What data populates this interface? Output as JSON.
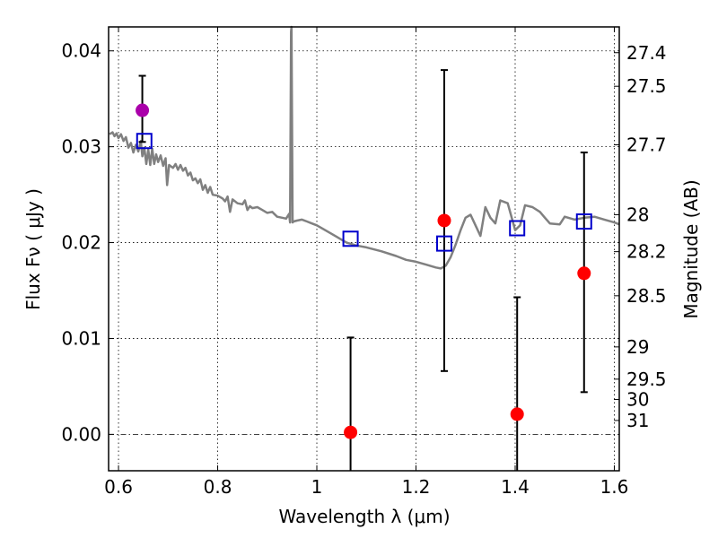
{
  "chart_data": {
    "type": "scatter",
    "xlabel": "Wavelength  λ (μm)",
    "ylabel": "Flux  Fν  ( μJy )",
    "ylabel_right": "Magnitude (AB)",
    "xlim": [
      0.58,
      1.61
    ],
    "ylim": [
      -0.0038,
      0.0425
    ],
    "grid": true,
    "x_ticks": [
      0.6,
      0.8,
      1.0,
      1.2,
      1.4,
      1.6
    ],
    "x_tick_labels": [
      "0.6",
      "0.8",
      "1",
      "1.2",
      "1.4",
      "1.6"
    ],
    "y_ticks": [
      0.0,
      0.01,
      0.02,
      0.03,
      0.04
    ],
    "y_tick_labels": [
      "0.00",
      "0.01",
      "0.02",
      "0.03",
      "0.04"
    ],
    "mag_ticks": [
      27.4,
      27.5,
      27.7,
      28,
      28.2,
      28.5,
      29,
      29.5,
      30,
      31
    ],
    "mag_tick_labels": [
      "27.4",
      "27.5",
      "27.7",
      "28",
      "28.2",
      "28.5",
      "29",
      "29.5",
      "30",
      "31"
    ],
    "model_spectrum": {
      "color": "#808080",
      "points": [
        [
          0.582,
          0.0313
        ],
        [
          0.588,
          0.0315
        ],
        [
          0.592,
          0.0311
        ],
        [
          0.596,
          0.0314
        ],
        [
          0.6,
          0.0309
        ],
        [
          0.605,
          0.0313
        ],
        [
          0.61,
          0.0306
        ],
        [
          0.615,
          0.031
        ],
        [
          0.62,
          0.0299
        ],
        [
          0.625,
          0.0304
        ],
        [
          0.63,
          0.0294
        ],
        [
          0.635,
          0.0302
        ],
        [
          0.64,
          0.0295
        ],
        [
          0.645,
          0.0306
        ],
        [
          0.648,
          0.029
        ],
        [
          0.652,
          0.0299
        ],
        [
          0.656,
          0.0282
        ],
        [
          0.66,
          0.0297
        ],
        [
          0.664,
          0.0281
        ],
        [
          0.668,
          0.0298
        ],
        [
          0.672,
          0.0282
        ],
        [
          0.676,
          0.0292
        ],
        [
          0.68,
          0.0284
        ],
        [
          0.685,
          0.0291
        ],
        [
          0.69,
          0.028
        ],
        [
          0.695,
          0.0288
        ],
        [
          0.698,
          0.026
        ],
        [
          0.702,
          0.0281
        ],
        [
          0.71,
          0.0278
        ],
        [
          0.715,
          0.0282
        ],
        [
          0.72,
          0.0276
        ],
        [
          0.725,
          0.0281
        ],
        [
          0.73,
          0.0275
        ],
        [
          0.735,
          0.0278
        ],
        [
          0.74,
          0.027
        ],
        [
          0.745,
          0.0273
        ],
        [
          0.75,
          0.0265
        ],
        [
          0.755,
          0.0267
        ],
        [
          0.76,
          0.0262
        ],
        [
          0.765,
          0.0266
        ],
        [
          0.77,
          0.0255
        ],
        [
          0.775,
          0.026
        ],
        [
          0.78,
          0.0252
        ],
        [
          0.785,
          0.0258
        ],
        [
          0.79,
          0.025
        ],
        [
          0.8,
          0.0249
        ],
        [
          0.81,
          0.0246
        ],
        [
          0.815,
          0.0243
        ],
        [
          0.82,
          0.0248
        ],
        [
          0.825,
          0.0232
        ],
        [
          0.83,
          0.0245
        ],
        [
          0.84,
          0.0241
        ],
        [
          0.85,
          0.024
        ],
        [
          0.855,
          0.0244
        ],
        [
          0.86,
          0.0234
        ],
        [
          0.865,
          0.0238
        ],
        [
          0.87,
          0.0236
        ],
        [
          0.88,
          0.0237
        ],
        [
          0.89,
          0.0234
        ],
        [
          0.9,
          0.0231
        ],
        [
          0.91,
          0.0232
        ],
        [
          0.92,
          0.0227
        ],
        [
          0.93,
          0.0226
        ],
        [
          0.938,
          0.0225
        ],
        [
          0.944,
          0.023
        ],
        [
          0.946,
          0.0221
        ],
        [
          0.948,
          0.042
        ],
        [
          0.949,
          0.043
        ],
        [
          0.951,
          0.0221
        ],
        [
          0.953,
          0.0222
        ],
        [
          0.96,
          0.0223
        ],
        [
          0.97,
          0.0224
        ],
        [
          0.98,
          0.0222
        ],
        [
          0.99,
          0.022
        ],
        [
          1.0,
          0.0218
        ],
        [
          1.02,
          0.0212
        ],
        [
          1.04,
          0.0206
        ],
        [
          1.06,
          0.02
        ],
        [
          1.08,
          0.0197
        ],
        [
          1.1,
          0.0195
        ],
        [
          1.13,
          0.0191
        ],
        [
          1.16,
          0.0186
        ],
        [
          1.18,
          0.0182
        ],
        [
          1.2,
          0.018
        ],
        [
          1.22,
          0.0177
        ],
        [
          1.24,
          0.0174
        ],
        [
          1.25,
          0.0173
        ],
        [
          1.26,
          0.0176
        ],
        [
          1.27,
          0.0185
        ],
        [
          1.28,
          0.0198
        ],
        [
          1.29,
          0.0213
        ],
        [
          1.3,
          0.0226
        ],
        [
          1.31,
          0.0229
        ],
        [
          1.32,
          0.0218
        ],
        [
          1.33,
          0.0207
        ],
        [
          1.34,
          0.0237
        ],
        [
          1.35,
          0.0226
        ],
        [
          1.36,
          0.022
        ],
        [
          1.37,
          0.0244
        ],
        [
          1.385,
          0.0241
        ],
        [
          1.4,
          0.0213
        ],
        [
          1.41,
          0.0218
        ],
        [
          1.42,
          0.0239
        ],
        [
          1.435,
          0.0237
        ],
        [
          1.45,
          0.0232
        ],
        [
          1.46,
          0.0226
        ],
        [
          1.47,
          0.022
        ],
        [
          1.49,
          0.0219
        ],
        [
          1.5,
          0.0227
        ],
        [
          1.52,
          0.0224
        ],
        [
          1.54,
          0.0226
        ],
        [
          1.56,
          0.0227
        ],
        [
          1.58,
          0.0224
        ],
        [
          1.6,
          0.0221
        ],
        [
          1.61,
          0.0219
        ]
      ]
    },
    "model_photometry": {
      "marker": "open-square",
      "color": "#0000cc",
      "x": [
        0.652,
        1.068,
        1.257,
        1.404,
        1.539
      ],
      "y": [
        0.0306,
        0.0204,
        0.0199,
        0.0215,
        0.0222
      ]
    },
    "observed_points": [
      {
        "x": 0.648,
        "y": 0.0338,
        "yerr_low": 0.0305,
        "yerr_high": 0.0374,
        "color": "#aa00aa"
      },
      {
        "x": 1.068,
        "y": 0.0002,
        "yerr_low": -0.0045,
        "yerr_high": 0.0101,
        "color": "#ff0000"
      },
      {
        "x": 1.257,
        "y": 0.0223,
        "yerr_low": 0.0066,
        "yerr_high": 0.038,
        "color": "#ff0000"
      },
      {
        "x": 1.404,
        "y": 0.0021,
        "yerr_low": -0.0045,
        "yerr_high": 0.0143,
        "color": "#ff0000"
      },
      {
        "x": 1.539,
        "y": 0.0168,
        "yerr_low": 0.0044,
        "yerr_high": 0.0294,
        "color": "#ff0000"
      }
    ]
  }
}
